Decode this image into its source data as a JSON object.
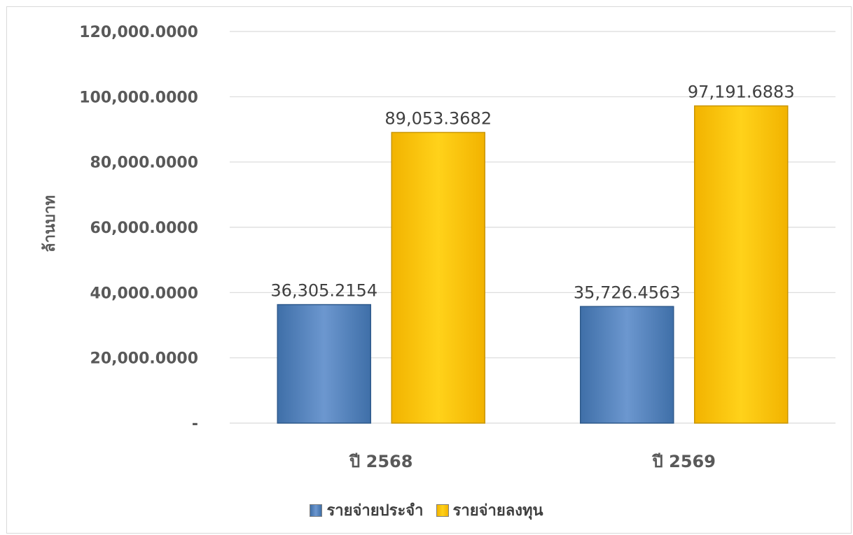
{
  "chart_data": {
    "type": "bar",
    "categories": [
      "ปี 2568",
      "ปี 2569"
    ],
    "series": [
      {
        "name": "รายจ่ายประจำ",
        "values": [
          36305.2154,
          35726.4563
        ],
        "value_labels": [
          "36,305.2154",
          "35,726.4563"
        ],
        "color": "#4f81bd"
      },
      {
        "name": "รายจ่ายลงทุน",
        "values": [
          89053.3682,
          97191.6883
        ],
        "value_labels": [
          "89,053.3682",
          "97,191.6883"
        ],
        "color": "#ffc000"
      }
    ],
    "ylabel": "ล้านบาท",
    "ylim": [
      0,
      120000
    ],
    "yticks": [
      0,
      20000,
      40000,
      60000,
      80000,
      100000,
      120000
    ],
    "ytick_labels": [
      "-",
      "20,000.0000",
      "40,000.0000",
      "60,000.0000",
      "80,000.0000",
      "100,000.0000",
      "120,000.0000"
    ],
    "grid": true,
    "legend_position": "bottom"
  }
}
